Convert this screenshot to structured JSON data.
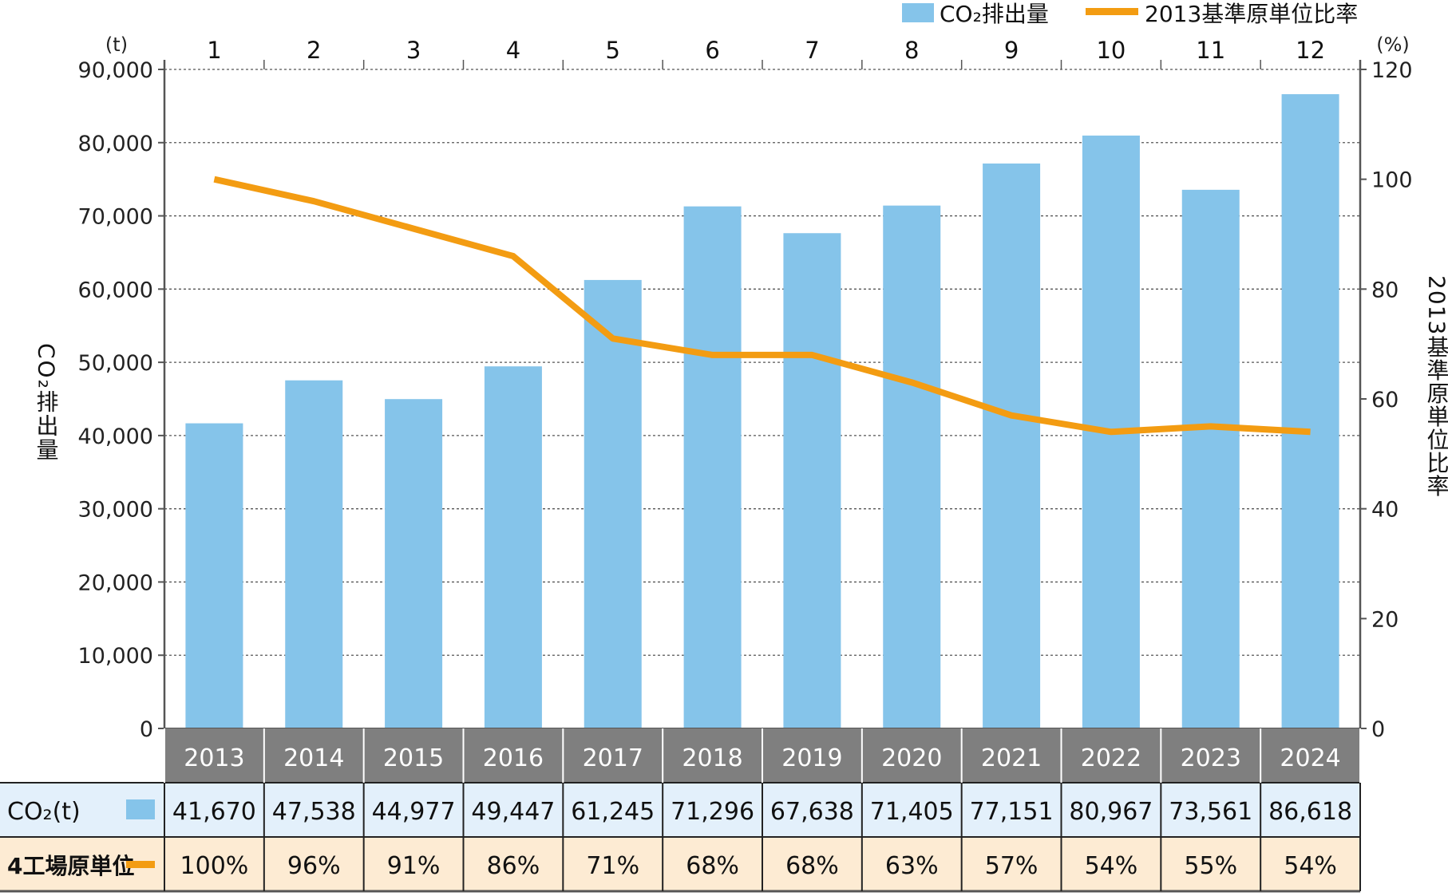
{
  "chart_data": {
    "type": "bar+line",
    "legend": {
      "position": "top-right",
      "items": [
        {
          "label": "CO₂排出量",
          "kind": "bar"
        },
        {
          "label": "2013基準原単位比率",
          "kind": "line"
        }
      ]
    },
    "categories": [
      "2013",
      "2014",
      "2015",
      "2016",
      "2017",
      "2018",
      "2019",
      "2020",
      "2021",
      "2022",
      "2023",
      "2024"
    ],
    "top_index_labels": [
      "1",
      "2",
      "3",
      "4",
      "5",
      "6",
      "7",
      "8",
      "9",
      "10",
      "11",
      "12"
    ],
    "series": [
      {
        "name": "CO₂排出量",
        "type": "bar",
        "axis": "left",
        "color": "#85c4ea",
        "values": [
          41670,
          47538,
          44977,
          49447,
          61245,
          71296,
          67638,
          71405,
          77151,
          80967,
          73561,
          86618
        ]
      },
      {
        "name": "2013基準原単位比率",
        "type": "line",
        "axis": "right",
        "color": "#f39c12",
        "values": [
          100,
          96,
          91,
          86,
          71,
          68,
          68,
          63,
          57,
          54,
          55,
          54
        ]
      }
    ],
    "left_axis": {
      "label": "CO₂排出量",
      "unit": "(t)",
      "ylim": [
        0,
        90000
      ],
      "ticks": [
        "0",
        "10,000",
        "20,000",
        "30,000",
        "40,000",
        "50,000",
        "60,000",
        "70,000",
        "80,000",
        "90,000"
      ]
    },
    "right_axis": {
      "label": "2013基準原単位比率",
      "unit": "(%)",
      "ylim": [
        0,
        120
      ],
      "ticks": [
        "0",
        "20",
        "40",
        "60",
        "80",
        "100",
        "120"
      ]
    },
    "grid": true,
    "table": {
      "row1_label": "CO₂(t)",
      "row1_values": [
        "41,670",
        "47,538",
        "44,977",
        "49,447",
        "61,245",
        "71,296",
        "67,638",
        "71,405",
        "77,151",
        "80,967",
        "73,561",
        "86,618"
      ],
      "row2_label": "4工場原単位",
      "row2_values": [
        "100%",
        "96%",
        "91%",
        "86%",
        "71%",
        "68%",
        "68%",
        "63%",
        "57%",
        "54%",
        "55%",
        "54%"
      ],
      "header_color": "#7f7f7f",
      "row1_color": "#e3f0fb",
      "row2_color": "#fdebd3"
    }
  }
}
